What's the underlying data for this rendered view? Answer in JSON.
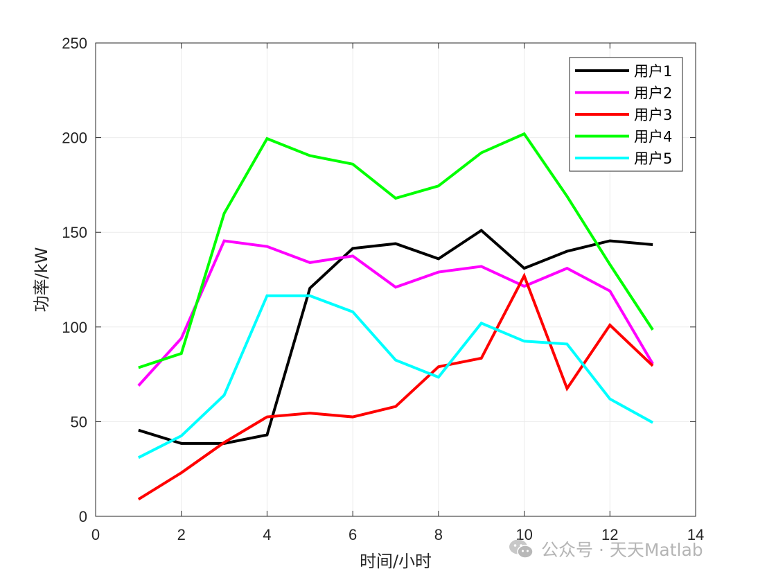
{
  "chart_data": {
    "type": "line",
    "title": "",
    "xlabel": "时间/小时",
    "ylabel": "功率/kW",
    "xlim": [
      0,
      14
    ],
    "ylim": [
      0,
      250
    ],
    "xticks": [
      0,
      2,
      4,
      6,
      8,
      10,
      12,
      14
    ],
    "yticks": [
      0,
      50,
      100,
      150,
      200,
      250
    ],
    "grid": true,
    "legend_position": "top-right",
    "x": [
      1,
      2,
      3,
      4,
      5,
      6,
      7,
      8,
      9,
      10,
      11,
      12,
      13
    ],
    "series": [
      {
        "name": "用户1",
        "color": "#000000",
        "values": [
          45.5,
          38.5,
          38.5,
          43,
          120.5,
          141.5,
          144,
          136,
          151,
          131,
          140,
          145.5,
          143.5
        ]
      },
      {
        "name": "用户2",
        "color": "#ff00ff",
        "values": [
          69,
          94,
          145.5,
          142.5,
          134,
          137.5,
          121,
          129,
          132,
          121.5,
          131,
          119,
          80.5
        ]
      },
      {
        "name": "用户3",
        "color": "#ff0000",
        "values": [
          9,
          23,
          39,
          52.5,
          54.5,
          52.5,
          58,
          79,
          83.5,
          127,
          67.5,
          101,
          79.5
        ]
      },
      {
        "name": "用户4",
        "color": "#00ff00",
        "values": [
          78.5,
          86,
          160,
          199.5,
          190.5,
          186,
          168,
          174.5,
          192,
          202,
          169,
          133,
          98.5
        ]
      },
      {
        "name": "用户5",
        "color": "#00ffff",
        "values": [
          31,
          42.5,
          64,
          116.5,
          116.5,
          108,
          82.5,
          73.5,
          102,
          92.5,
          91,
          62,
          49.5
        ]
      }
    ]
  },
  "watermark": {
    "icon": "wechat-icon",
    "text": "公众号 · 天天Matlab"
  }
}
